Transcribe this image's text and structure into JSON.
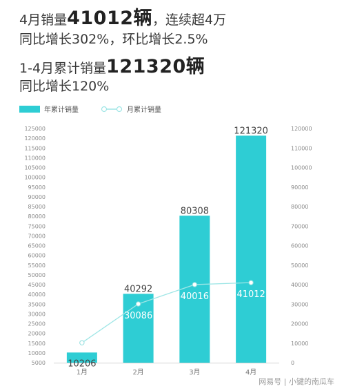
{
  "headlines": {
    "line1": {
      "pre": "4月销量",
      "big": "41012辆",
      "post": "，连续超4万"
    },
    "line2": "同比增长302%，环比增长2.5%",
    "line3": {
      "pre": "1-4月累计销量",
      "big": "121320辆"
    },
    "line4": "同比增长120%"
  },
  "chart_data": {
    "type": "bar+line",
    "categories": [
      "1月",
      "2月",
      "3月",
      "4月"
    ],
    "series": [
      {
        "name": "年累计销量",
        "kind": "bar",
        "axis": "left",
        "values": [
          10206,
          40292,
          80308,
          121320
        ],
        "color": "#2ecdd4"
      },
      {
        "name": "月累计销量",
        "kind": "line",
        "axis": "right",
        "values": [
          10206,
          30086,
          40016,
          41012
        ],
        "color": "#9fe6e6"
      }
    ],
    "y_left": {
      "min": 5000,
      "max": 125000,
      "step": 5000
    },
    "y_right": {
      "min": 0,
      "max": 120000,
      "step": 10000
    },
    "grid": false,
    "legend": "top-left"
  },
  "watermark": "网易号 | 小键的南瓜车"
}
